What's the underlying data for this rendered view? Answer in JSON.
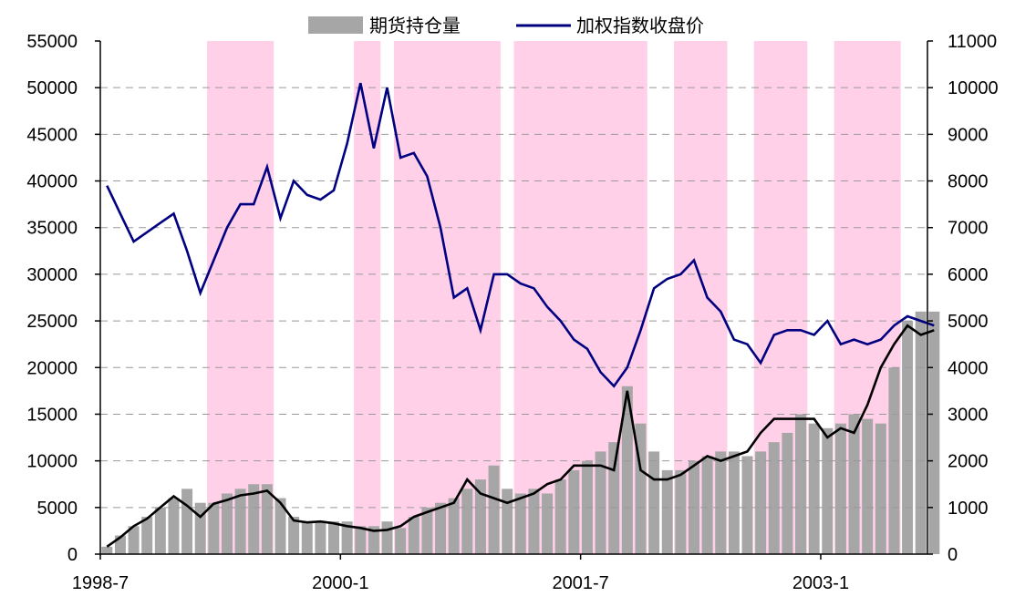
{
  "legend": {
    "open_interest_label": "期货持仓量",
    "index_close_label": "加权指数收盘价"
  },
  "colors": {
    "open_interest_bar": "#a6a6a6",
    "index_close_line": "#000080",
    "moving_average_line": "#000000",
    "highlight_band": "#ffc0e0",
    "grid": "#999999",
    "axis": "#000000"
  },
  "chart_data": {
    "type": "bar",
    "title": "",
    "xlabel": "",
    "ylabel": "",
    "x_ticks": [
      "1998-7",
      "2000-1",
      "2001-7",
      "2003-1"
    ],
    "x_range": [
      "1998-07",
      "2003-09"
    ],
    "y_left": {
      "range": [
        0,
        55000
      ],
      "ticks": [
        0,
        5000,
        10000,
        15000,
        20000,
        25000,
        30000,
        35000,
        40000,
        45000,
        50000,
        55000
      ]
    },
    "y_right": {
      "range": [
        0,
        11000
      ],
      "ticks": [
        0,
        1000,
        2000,
        3000,
        4000,
        5000,
        6000,
        7000,
        8000,
        9000,
        10000,
        11000
      ]
    },
    "grid": "horizontal dashed",
    "legend_position": "top-center",
    "highlight_periods": [
      [
        "1999-03",
        "1999-08"
      ],
      [
        "2000-02",
        "2000-04"
      ],
      [
        "2000-05",
        "2001-01"
      ],
      [
        "2001-02",
        "2001-12"
      ],
      [
        "2002-02",
        "2002-06"
      ],
      [
        "2002-08",
        "2002-12"
      ],
      [
        "2003-02",
        "2003-07"
      ]
    ],
    "series": [
      {
        "name": "期货持仓量",
        "type": "bar",
        "axis": "left",
        "x": [
          "1998-07",
          "1998-08",
          "1998-09",
          "1998-10",
          "1998-11",
          "1998-12",
          "1999-01",
          "1999-02",
          "1999-03",
          "1999-04",
          "1999-05",
          "1999-06",
          "1999-07",
          "1999-08",
          "1999-09",
          "1999-10",
          "1999-11",
          "1999-12",
          "2000-01",
          "2000-02",
          "2000-03",
          "2000-04",
          "2000-05",
          "2000-06",
          "2000-07",
          "2000-08",
          "2000-09",
          "2000-10",
          "2000-11",
          "2000-12",
          "2001-01",
          "2001-02",
          "2001-03",
          "2001-04",
          "2001-05",
          "2001-06",
          "2001-07",
          "2001-08",
          "2001-09",
          "2001-10",
          "2001-11",
          "2001-12",
          "2002-01",
          "2002-02",
          "2002-03",
          "2002-04",
          "2002-05",
          "2002-06",
          "2002-07",
          "2002-08",
          "2002-09",
          "2002-10",
          "2002-11",
          "2002-12",
          "2003-01",
          "2003-02",
          "2003-03",
          "2003-04",
          "2003-05",
          "2003-06",
          "2003-07",
          "2003-08",
          "2003-09"
        ],
        "values": [
          800,
          2000,
          3000,
          4000,
          5000,
          6000,
          7000,
          5500,
          5500,
          6500,
          7000,
          7500,
          7500,
          6000,
          4000,
          3500,
          3500,
          3500,
          3500,
          3000,
          3000,
          3500,
          2800,
          4000,
          5000,
          5500,
          6000,
          7000,
          8000,
          9500,
          7000,
          6500,
          7000,
          6500,
          8000,
          9000,
          10000,
          11000,
          12000,
          18000,
          14000,
          11000,
          9000,
          9000,
          10000,
          10500,
          11000,
          11000,
          10500,
          11000,
          12000,
          13000,
          15000,
          14000,
          13500,
          14000,
          15000,
          14500,
          14000,
          20000,
          25000,
          26000,
          26000
        ]
      },
      {
        "name": "加权指数收盘价",
        "type": "line",
        "axis": "right",
        "x": [
          "1998-07",
          "1998-08",
          "1998-09",
          "1998-10",
          "1998-11",
          "1998-12",
          "1999-01",
          "1999-02",
          "1999-03",
          "1999-04",
          "1999-05",
          "1999-06",
          "1999-07",
          "1999-08",
          "1999-09",
          "1999-10",
          "1999-11",
          "1999-12",
          "2000-01",
          "2000-02",
          "2000-03",
          "2000-04",
          "2000-05",
          "2000-06",
          "2000-07",
          "2000-08",
          "2000-09",
          "2000-10",
          "2000-11",
          "2000-12",
          "2001-01",
          "2001-02",
          "2001-03",
          "2001-04",
          "2001-05",
          "2001-06",
          "2001-07",
          "2001-08",
          "2001-09",
          "2001-10",
          "2001-11",
          "2001-12",
          "2002-01",
          "2002-02",
          "2002-03",
          "2002-04",
          "2002-05",
          "2002-06",
          "2002-07",
          "2002-08",
          "2002-09",
          "2002-10",
          "2002-11",
          "2002-12",
          "2003-01",
          "2003-02",
          "2003-03",
          "2003-04",
          "2003-05",
          "2003-06",
          "2003-07",
          "2003-08",
          "2003-09"
        ],
        "values": [
          7900,
          7300,
          6700,
          6900,
          7100,
          7300,
          6500,
          5600,
          6300,
          7000,
          7500,
          7500,
          8300,
          7200,
          8000,
          7700,
          7600,
          7800,
          8800,
          10100,
          8700,
          10000,
          8500,
          8600,
          8100,
          7000,
          5500,
          5700,
          4800,
          6000,
          6000,
          5800,
          5700,
          5300,
          5000,
          4600,
          4400,
          3900,
          3600,
          4000,
          4800,
          5700,
          5900,
          6000,
          6300,
          5500,
          5200,
          4600,
          4500,
          4100,
          4700,
          4800,
          4800,
          4700,
          5000,
          4500,
          4600,
          4500,
          4600,
          4900,
          5100,
          5000,
          4900
        ]
      },
      {
        "name": "",
        "type": "line",
        "axis": "left",
        "x": [
          "1998-07",
          "1998-08",
          "1998-09",
          "1998-10",
          "1998-11",
          "1998-12",
          "1999-01",
          "1999-02",
          "1999-03",
          "1999-04",
          "1999-05",
          "1999-06",
          "1999-07",
          "1999-08",
          "1999-09",
          "1999-10",
          "1999-11",
          "1999-12",
          "2000-01",
          "2000-02",
          "2000-03",
          "2000-04",
          "2000-05",
          "2000-06",
          "2000-07",
          "2000-08",
          "2000-09",
          "2000-10",
          "2000-11",
          "2000-12",
          "2001-01",
          "2001-02",
          "2001-03",
          "2001-04",
          "2001-05",
          "2001-06",
          "2001-07",
          "2001-08",
          "2001-09",
          "2001-10",
          "2001-11",
          "2001-12",
          "2002-01",
          "2002-02",
          "2002-03",
          "2002-04",
          "2002-05",
          "2002-06",
          "2002-07",
          "2002-08",
          "2002-09",
          "2002-10",
          "2002-11",
          "2002-12",
          "2003-01",
          "2003-02",
          "2003-03",
          "2003-04",
          "2003-05",
          "2003-06",
          "2003-07",
          "2003-08",
          "2003-09"
        ],
        "values": [
          800,
          1800,
          3000,
          3800,
          5000,
          6200,
          5200,
          4000,
          5400,
          5800,
          6300,
          6500,
          6800,
          5500,
          3600,
          3400,
          3500,
          3300,
          3000,
          2800,
          2500,
          2600,
          3000,
          4000,
          4500,
          5000,
          5500,
          8000,
          6500,
          6000,
          5500,
          6000,
          6500,
          7500,
          8000,
          9500,
          9500,
          9500,
          9000,
          17500,
          9000,
          8000,
          8000,
          8500,
          9500,
          10500,
          10000,
          10500,
          11000,
          13000,
          14500,
          14500,
          14500,
          14500,
          12500,
          13500,
          13000,
          16000,
          20000,
          22500,
          24500,
          23500,
          24000
        ]
      }
    ]
  }
}
